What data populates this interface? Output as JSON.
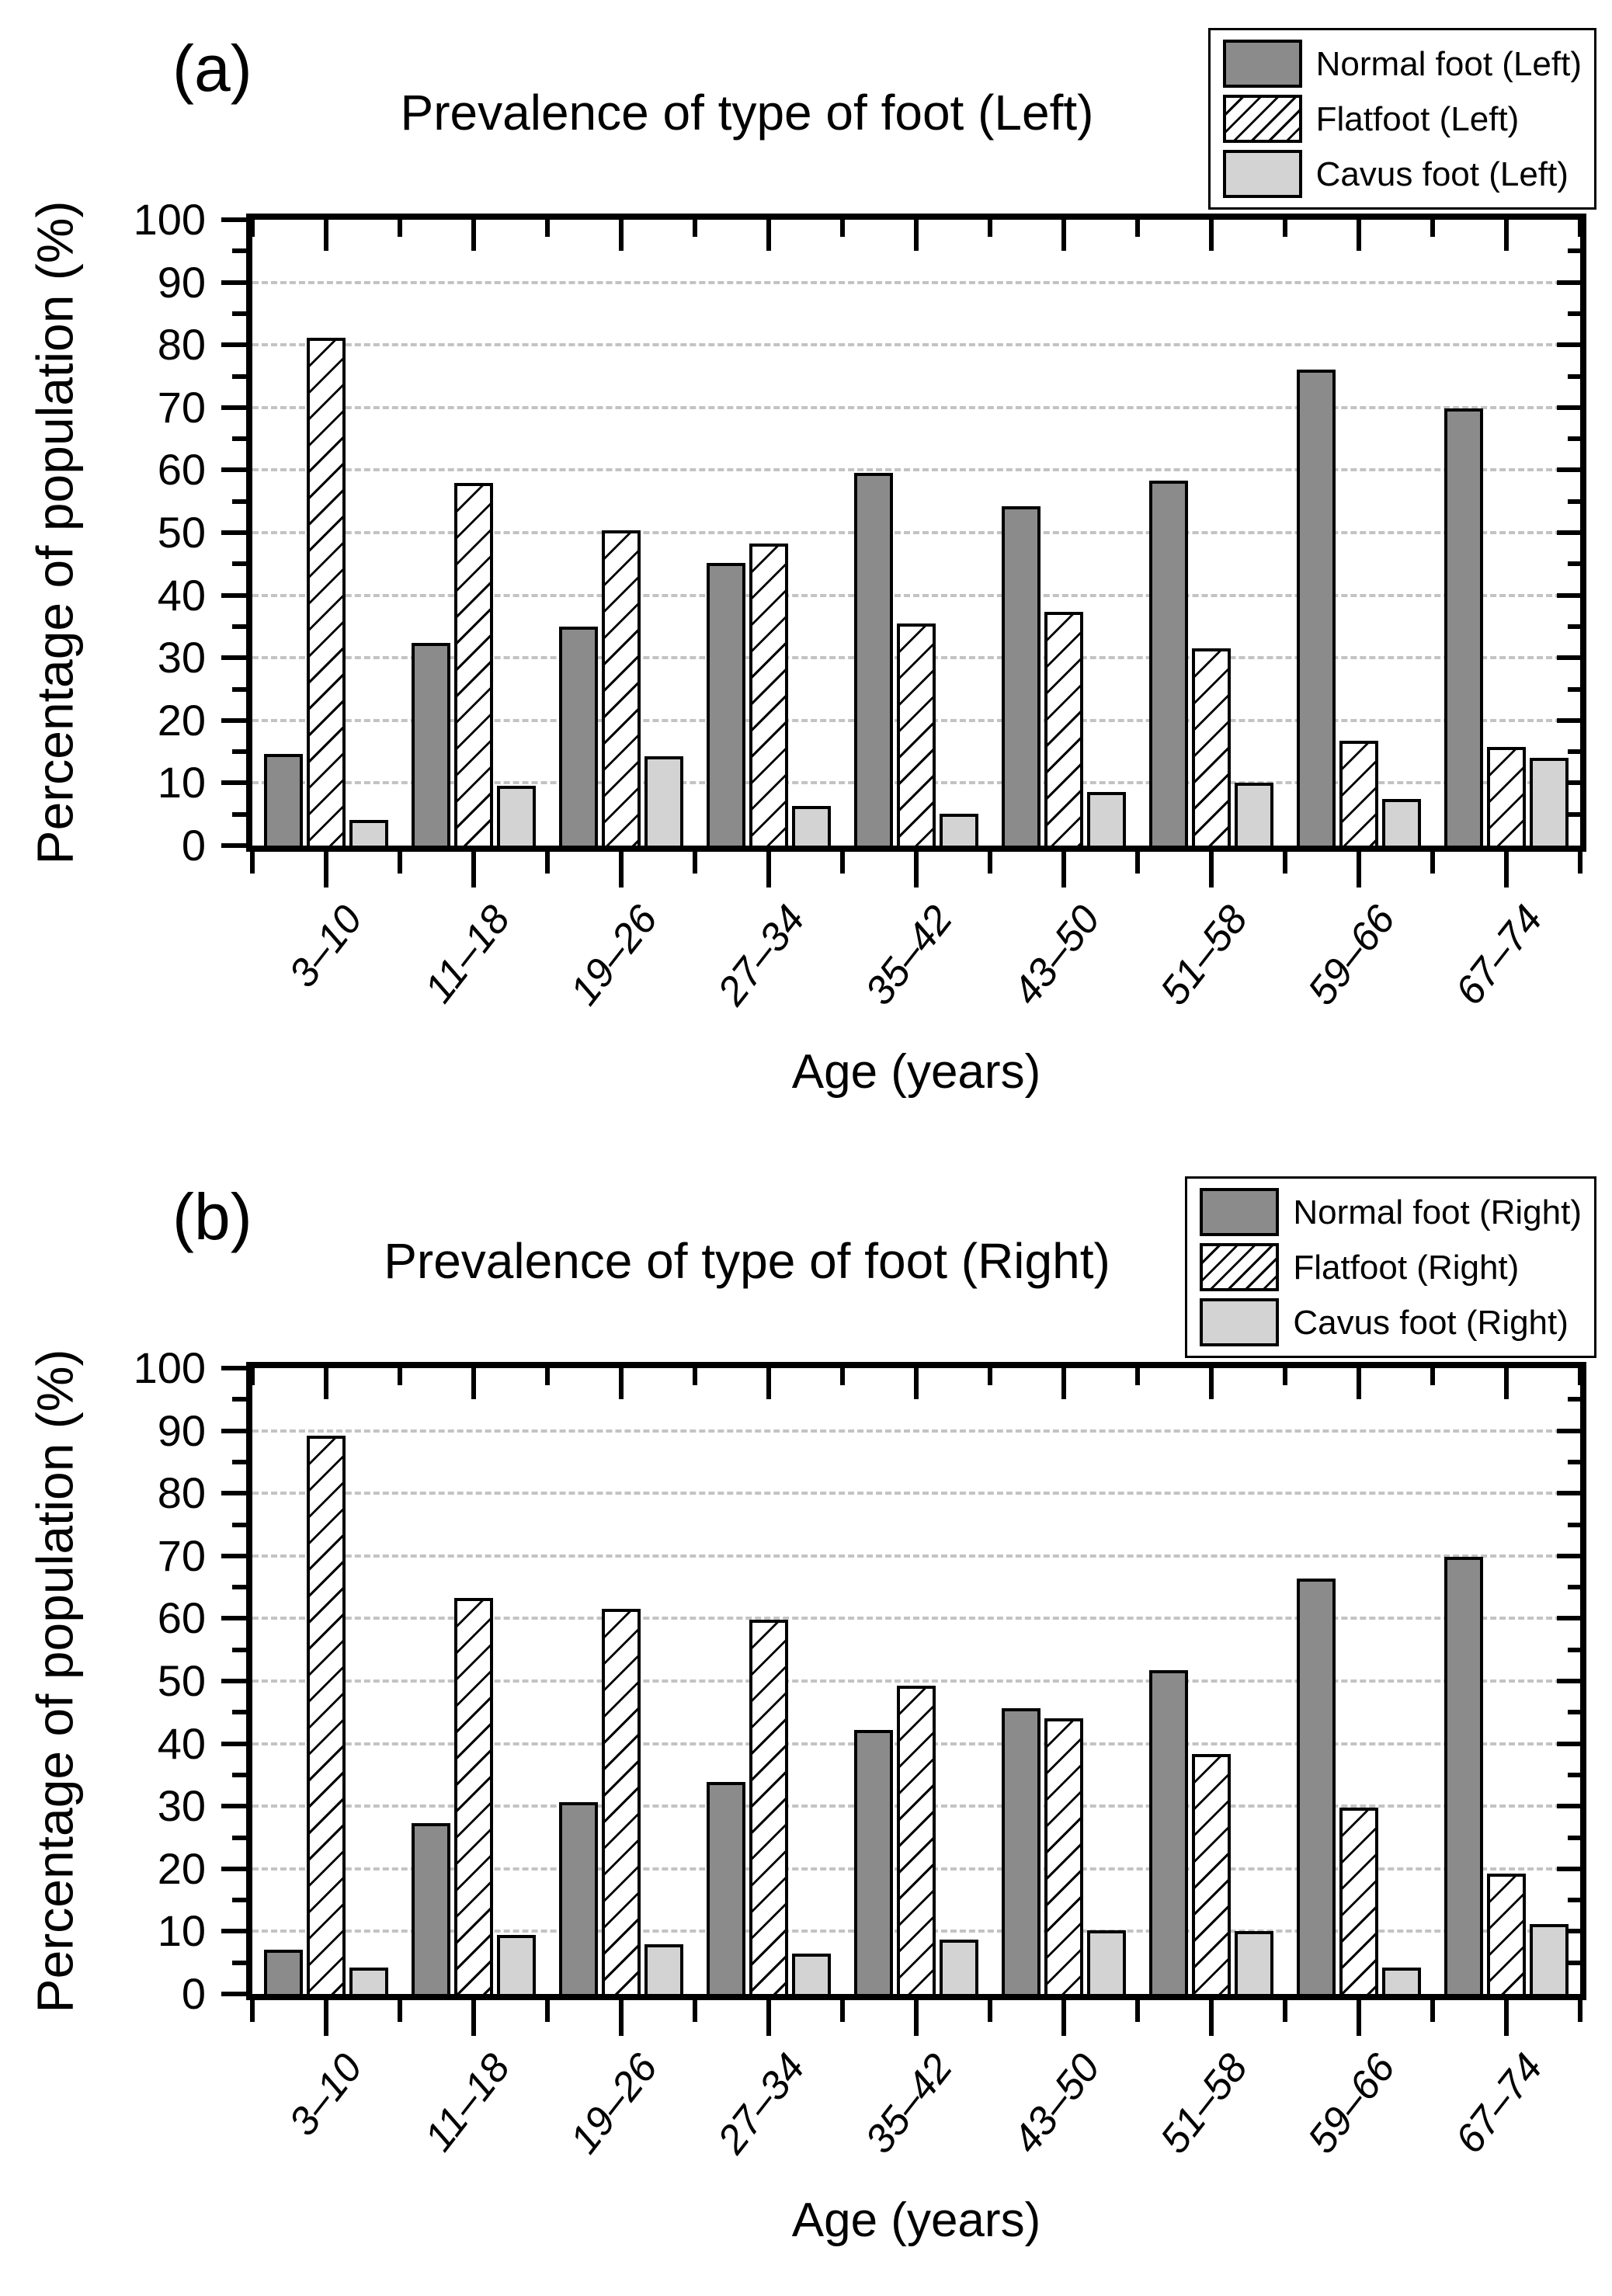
{
  "figure": {
    "background": "#ffffff",
    "axis_color": "#000000",
    "grid_style": "dashed horizontal gray lines at every 10%",
    "bar_outline": "#000000"
  },
  "chart_data": [
    {
      "type": "bar",
      "panel_label": "(a)",
      "title": "Prevalence of type of foot (Left)",
      "xlabel": "Age (years)",
      "ylabel": "Percentage of population (%)",
      "ylim": [
        0,
        100
      ],
      "yticks": [
        0,
        10,
        20,
        30,
        40,
        50,
        60,
        70,
        80,
        90,
        100
      ],
      "grid": "dashed-horizontal",
      "legend_position": "top-right",
      "categories": [
        "3–10",
        "11–18",
        "19–26",
        "27–34",
        "35–42",
        "43–50",
        "51–58",
        "59–66",
        "67–74"
      ],
      "series": [
        {
          "name": "Normal foot (Left)",
          "style": "solid",
          "color": "#8b8b8b",
          "values": [
            14.7,
            32.4,
            35.0,
            45.2,
            59.6,
            54.2,
            58.3,
            76.0,
            69.9
          ]
        },
        {
          "name": "Flatfoot (Left)",
          "style": "diagonal-hatch",
          "color": "#ffffff",
          "hatch": "/",
          "values": [
            81.2,
            58.0,
            50.4,
            48.3,
            35.5,
            37.3,
            31.5,
            16.7,
            15.7
          ]
        },
        {
          "name": "Cavus foot (Left)",
          "style": "solid",
          "color": "#d3d3d3",
          "values": [
            4.1,
            9.5,
            14.3,
            6.3,
            5.1,
            8.6,
            10.1,
            7.4,
            14.0
          ]
        }
      ]
    },
    {
      "type": "bar",
      "panel_label": "(b)",
      "title": "Prevalence of type of foot (Right)",
      "xlabel": "Age (years)",
      "ylabel": "Percentage of population (%)",
      "ylim": [
        0,
        100
      ],
      "yticks": [
        0,
        10,
        20,
        30,
        40,
        50,
        60,
        70,
        80,
        90,
        100
      ],
      "grid": "dashed-horizontal",
      "legend_position": "top-right",
      "categories": [
        "3–10",
        "11–18",
        "19–26",
        "27–34",
        "35–42",
        "43–50",
        "51–58",
        "59–66",
        "67–74"
      ],
      "series": [
        {
          "name": "Normal foot (Right)",
          "style": "solid",
          "color": "#8b8b8b",
          "values": [
            7.1,
            27.3,
            30.7,
            33.9,
            42.2,
            45.6,
            51.7,
            66.4,
            69.8
          ]
        },
        {
          "name": "Flatfoot (Right)",
          "style": "diagonal-hatch",
          "color": "#ffffff",
          "hatch": "/",
          "values": [
            89.2,
            63.3,
            61.5,
            59.8,
            49.2,
            44.0,
            38.4,
            29.8,
            19.2
          ]
        },
        {
          "name": "Cavus foot (Right)",
          "style": "solid",
          "color": "#d3d3d3",
          "values": [
            4.2,
            9.4,
            7.9,
            6.4,
            8.7,
            10.2,
            10.0,
            4.2,
            11.2
          ]
        }
      ]
    }
  ]
}
